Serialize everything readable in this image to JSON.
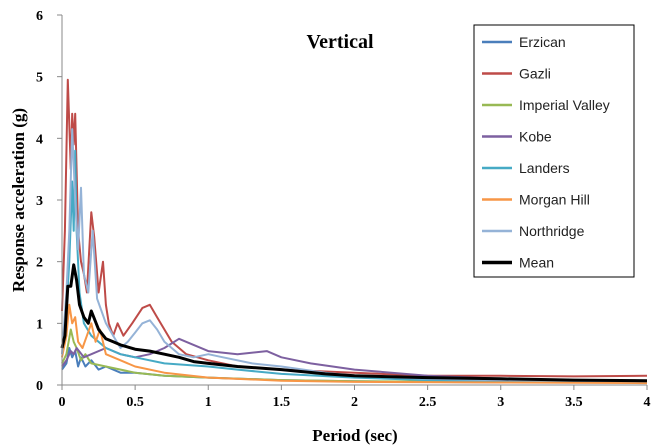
{
  "chart_data": {
    "type": "line",
    "title": "Vertical",
    "xlabel": "Period (sec)",
    "ylabel": "Response acceleration (g)",
    "xlim": [
      0,
      4
    ],
    "ylim": [
      0,
      6
    ],
    "x_ticks": [
      "0",
      "0.5",
      "1",
      "1.5",
      "2",
      "2.5",
      "3",
      "3.5",
      "4"
    ],
    "y_ticks": [
      "0",
      "1",
      "2",
      "3",
      "4",
      "5",
      "6"
    ],
    "grid": false,
    "legend_position": "top-right",
    "series": [
      {
        "name": "Erzican",
        "color": "#4a7ebb",
        "points": [
          [
            0,
            0.25
          ],
          [
            0.03,
            0.35
          ],
          [
            0.05,
            0.6
          ],
          [
            0.07,
            0.45
          ],
          [
            0.09,
            0.55
          ],
          [
            0.11,
            0.3
          ],
          [
            0.13,
            0.45
          ],
          [
            0.16,
            0.3
          ],
          [
            0.2,
            0.4
          ],
          [
            0.25,
            0.25
          ],
          [
            0.3,
            0.3
          ],
          [
            0.4,
            0.2
          ],
          [
            0.5,
            0.2
          ],
          [
            0.7,
            0.15
          ],
          [
            1.0,
            0.12
          ],
          [
            1.5,
            0.08
          ],
          [
            2.0,
            0.06
          ],
          [
            3.0,
            0.04
          ],
          [
            4.0,
            0.04
          ]
        ]
      },
      {
        "name": "Gazli",
        "color": "#be4b48",
        "points": [
          [
            0,
            1.2
          ],
          [
            0.02,
            2.5
          ],
          [
            0.04,
            4.95
          ],
          [
            0.06,
            3.5
          ],
          [
            0.07,
            4.4
          ],
          [
            0.08,
            3.9
          ],
          [
            0.09,
            4.4
          ],
          [
            0.11,
            2.5
          ],
          [
            0.13,
            2.0
          ],
          [
            0.15,
            1.8
          ],
          [
            0.17,
            1.5
          ],
          [
            0.2,
            2.8
          ],
          [
            0.22,
            2.4
          ],
          [
            0.25,
            1.5
          ],
          [
            0.28,
            2.0
          ],
          [
            0.3,
            1.3
          ],
          [
            0.32,
            1.0
          ],
          [
            0.35,
            0.8
          ],
          [
            0.38,
            1.0
          ],
          [
            0.42,
            0.8
          ],
          [
            0.48,
            1.0
          ],
          [
            0.55,
            1.25
          ],
          [
            0.6,
            1.3
          ],
          [
            0.65,
            1.1
          ],
          [
            0.75,
            0.7
          ],
          [
            0.85,
            0.5
          ],
          [
            1.0,
            0.4
          ],
          [
            1.2,
            0.3
          ],
          [
            1.5,
            0.25
          ],
          [
            2.0,
            0.2
          ],
          [
            2.5,
            0.15
          ],
          [
            3.0,
            0.15
          ],
          [
            3.5,
            0.14
          ],
          [
            4.0,
            0.15
          ]
        ]
      },
      {
        "name": "Imperial Valley",
        "color": "#98b954",
        "points": [
          [
            0,
            0.35
          ],
          [
            0.03,
            0.5
          ],
          [
            0.06,
            0.9
          ],
          [
            0.08,
            0.7
          ],
          [
            0.1,
            0.6
          ],
          [
            0.13,
            0.4
          ],
          [
            0.16,
            0.5
          ],
          [
            0.2,
            0.35
          ],
          [
            0.3,
            0.3
          ],
          [
            0.5,
            0.2
          ],
          [
            0.7,
            0.15
          ],
          [
            1.0,
            0.12
          ],
          [
            1.5,
            0.08
          ],
          [
            2.0,
            0.06
          ],
          [
            3.0,
            0.05
          ],
          [
            4.0,
            0.05
          ]
        ]
      },
      {
        "name": "Kobe",
        "color": "#7d60a0",
        "points": [
          [
            0,
            0.3
          ],
          [
            0.03,
            0.4
          ],
          [
            0.06,
            0.55
          ],
          [
            0.08,
            0.5
          ],
          [
            0.1,
            0.6
          ],
          [
            0.15,
            0.45
          ],
          [
            0.2,
            0.5
          ],
          [
            0.3,
            0.6
          ],
          [
            0.4,
            0.5
          ],
          [
            0.5,
            0.45
          ],
          [
            0.6,
            0.5
          ],
          [
            0.7,
            0.6
          ],
          [
            0.8,
            0.75
          ],
          [
            0.9,
            0.65
          ],
          [
            1.0,
            0.55
          ],
          [
            1.2,
            0.5
          ],
          [
            1.4,
            0.55
          ],
          [
            1.5,
            0.45
          ],
          [
            1.7,
            0.35
          ],
          [
            2.0,
            0.25
          ],
          [
            2.5,
            0.15
          ],
          [
            3.0,
            0.1
          ],
          [
            3.5,
            0.08
          ],
          [
            4.0,
            0.07
          ]
        ]
      },
      {
        "name": "Landers",
        "color": "#46aac5",
        "points": [
          [
            0,
            0.6
          ],
          [
            0.03,
            1.2
          ],
          [
            0.05,
            2.0
          ],
          [
            0.07,
            3.3
          ],
          [
            0.08,
            2.5
          ],
          [
            0.09,
            3.8
          ],
          [
            0.1,
            2.5
          ],
          [
            0.12,
            1.5
          ],
          [
            0.15,
            1.0
          ],
          [
            0.2,
            0.8
          ],
          [
            0.3,
            0.6
          ],
          [
            0.4,
            0.5
          ],
          [
            0.5,
            0.45
          ],
          [
            0.7,
            0.35
          ],
          [
            1.0,
            0.3
          ],
          [
            1.2,
            0.25
          ],
          [
            1.5,
            0.18
          ],
          [
            2.0,
            0.12
          ],
          [
            2.5,
            0.08
          ],
          [
            3.0,
            0.06
          ],
          [
            4.0,
            0.05
          ]
        ]
      },
      {
        "name": "Morgan Hill",
        "color": "#f79646",
        "points": [
          [
            0,
            0.45
          ],
          [
            0.03,
            0.8
          ],
          [
            0.05,
            1.3
          ],
          [
            0.07,
            1.0
          ],
          [
            0.09,
            1.1
          ],
          [
            0.11,
            0.7
          ],
          [
            0.14,
            0.6
          ],
          [
            0.17,
            0.8
          ],
          [
            0.2,
            1.0
          ],
          [
            0.23,
            0.7
          ],
          [
            0.26,
            0.9
          ],
          [
            0.3,
            0.5
          ],
          [
            0.4,
            0.4
          ],
          [
            0.5,
            0.3
          ],
          [
            0.7,
            0.2
          ],
          [
            1.0,
            0.12
          ],
          [
            1.5,
            0.07
          ],
          [
            2.0,
            0.05
          ],
          [
            3.0,
            0.04
          ],
          [
            4.0,
            0.03
          ]
        ]
      },
      {
        "name": "Northridge",
        "color": "#95b3d7",
        "points": [
          [
            0,
            0.5
          ],
          [
            0.03,
            1.5
          ],
          [
            0.05,
            2.5
          ],
          [
            0.07,
            4.15
          ],
          [
            0.09,
            3.0
          ],
          [
            0.11,
            2.2
          ],
          [
            0.13,
            3.2
          ],
          [
            0.15,
            1.8
          ],
          [
            0.18,
            1.5
          ],
          [
            0.21,
            2.5
          ],
          [
            0.24,
            1.4
          ],
          [
            0.27,
            1.2
          ],
          [
            0.3,
            1.0
          ],
          [
            0.35,
            0.8
          ],
          [
            0.4,
            0.6
          ],
          [
            0.45,
            0.7
          ],
          [
            0.5,
            0.85
          ],
          [
            0.55,
            1.0
          ],
          [
            0.6,
            1.05
          ],
          [
            0.65,
            0.9
          ],
          [
            0.7,
            0.7
          ],
          [
            0.8,
            0.5
          ],
          [
            0.9,
            0.45
          ],
          [
            1.0,
            0.5
          ],
          [
            1.1,
            0.45
          ],
          [
            1.3,
            0.35
          ],
          [
            1.5,
            0.3
          ],
          [
            1.8,
            0.2
          ],
          [
            2.0,
            0.15
          ],
          [
            2.5,
            0.1
          ],
          [
            3.0,
            0.08
          ],
          [
            4.0,
            0.06
          ]
        ]
      },
      {
        "name": "Mean",
        "color": "#000000",
        "points": [
          [
            0,
            0.6
          ],
          [
            0.02,
            0.8
          ],
          [
            0.04,
            1.6
          ],
          [
            0.06,
            1.6
          ],
          [
            0.08,
            1.95
          ],
          [
            0.1,
            1.7
          ],
          [
            0.12,
            1.3
          ],
          [
            0.15,
            1.1
          ],
          [
            0.18,
            1.0
          ],
          [
            0.2,
            1.2
          ],
          [
            0.25,
            0.9
          ],
          [
            0.3,
            0.75
          ],
          [
            0.35,
            0.7
          ],
          [
            0.4,
            0.65
          ],
          [
            0.5,
            0.58
          ],
          [
            0.6,
            0.55
          ],
          [
            0.7,
            0.5
          ],
          [
            0.8,
            0.45
          ],
          [
            0.9,
            0.38
          ],
          [
            1.0,
            0.35
          ],
          [
            1.2,
            0.3
          ],
          [
            1.5,
            0.25
          ],
          [
            1.8,
            0.18
          ],
          [
            2.0,
            0.15
          ],
          [
            2.5,
            0.12
          ],
          [
            3.0,
            0.1
          ],
          [
            3.5,
            0.08
          ],
          [
            4.0,
            0.07
          ]
        ]
      }
    ]
  }
}
